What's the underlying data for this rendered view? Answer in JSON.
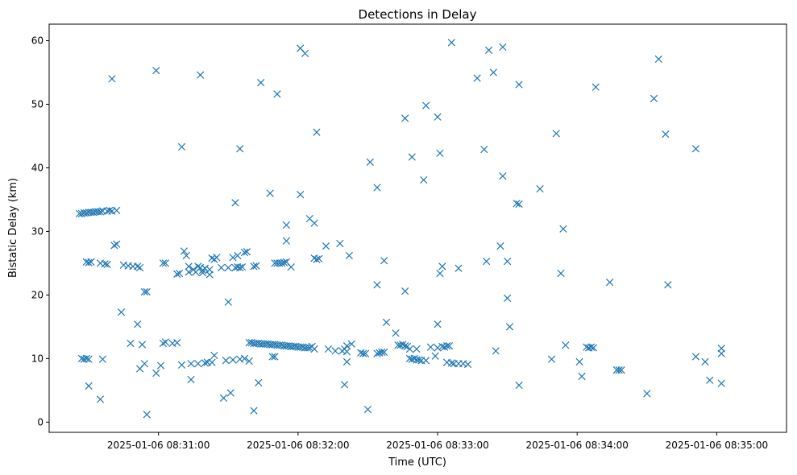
{
  "chart_data": {
    "type": "scatter",
    "title": "Detections in Delay",
    "xlabel": "Time (UTC)",
    "ylabel": "Bistatic Delay (km)",
    "marker": "x",
    "color": "#1f77b4",
    "grid": false,
    "xlim": [
      "2025-01-06T08:30:13",
      "2025-01-06T08:35:30"
    ],
    "ylim": [
      -1.6,
      62.6
    ],
    "x_ticks": [
      {
        "value": "2025-01-06T08:31:00",
        "label": "2025-01-06 08:31:00"
      },
      {
        "value": "2025-01-06T08:32:00",
        "label": "2025-01-06 08:32:00"
      },
      {
        "value": "2025-01-06T08:33:00",
        "label": "2025-01-06 08:33:00"
      },
      {
        "value": "2025-01-06T08:34:00",
        "label": "2025-01-06 08:34:00"
      },
      {
        "value": "2025-01-06T08:35:00",
        "label": "2025-01-06 08:35:00"
      }
    ],
    "y_ticks": [
      0,
      10,
      20,
      30,
      40,
      50,
      60
    ],
    "points": [
      [
        "08:30:26.0",
        32.8
      ],
      [
        "08:30:27.0",
        32.8
      ],
      [
        "08:30:28.0",
        32.9
      ],
      [
        "08:30:29.0",
        32.9
      ],
      [
        "08:30:30.0",
        33.0
      ],
      [
        "08:30:31.0",
        33.0
      ],
      [
        "08:30:32.0",
        33.0
      ],
      [
        "08:30:33.0",
        33.1
      ],
      [
        "08:30:34.0",
        33.1
      ],
      [
        "08:30:35.0",
        33.1
      ],
      [
        "08:30:36.0",
        33.2
      ],
      [
        "08:30:38.0",
        33.2
      ],
      [
        "08:30:39.0",
        33.3
      ],
      [
        "08:30:40.0",
        33.2
      ],
      [
        "08:30:42.0",
        33.3
      ],
      [
        "08:30:27.0",
        10.0
      ],
      [
        "08:30:28.0",
        9.9
      ],
      [
        "08:30:29.0",
        10.0
      ],
      [
        "08:30:30.0",
        9.9
      ],
      [
        "08:30:29.0",
        25.2
      ],
      [
        "08:30:30.0",
        25.1
      ],
      [
        "08:30:31.0",
        25.2
      ],
      [
        "08:30:30.0",
        5.7
      ],
      [
        "08:30:35.0",
        3.6
      ],
      [
        "08:30:35.0",
        25.0
      ],
      [
        "08:30:36.0",
        9.9
      ],
      [
        "08:30:37.0",
        24.9
      ],
      [
        "08:30:38.0",
        24.8
      ],
      [
        "08:30:40.0",
        54.0
      ],
      [
        "08:30:41.0",
        27.8
      ],
      [
        "08:30:42.0",
        28.0
      ],
      [
        "08:30:44.0",
        17.3
      ],
      [
        "08:30:45.0",
        24.7
      ],
      [
        "08:30:47.0",
        24.6
      ],
      [
        "08:30:48.0",
        12.4
      ],
      [
        "08:30:49.0",
        24.5
      ],
      [
        "08:30:51.0",
        24.5
      ],
      [
        "08:30:51.0",
        15.4
      ],
      [
        "08:30:52.0",
        8.4
      ],
      [
        "08:30:52.0",
        24.3
      ],
      [
        "08:30:53.0",
        12.2
      ],
      [
        "08:30:54.0",
        9.2
      ],
      [
        "08:30:54.0",
        20.5
      ],
      [
        "08:30:55.0",
        20.5
      ],
      [
        "08:30:55.0",
        1.2
      ],
      [
        "08:30:59.0",
        55.3
      ],
      [
        "08:30:59.0",
        7.7
      ],
      [
        "08:31:01.0",
        8.9
      ],
      [
        "08:31:02.0",
        12.4
      ],
      [
        "08:31:03.0",
        12.6
      ],
      [
        "08:31:02.0",
        25.0
      ],
      [
        "08:31:03.0",
        25.0
      ],
      [
        "08:31:06.0",
        12.4
      ],
      [
        "08:31:08.0",
        23.3
      ],
      [
        "08:31:09.0",
        23.4
      ],
      [
        "08:31:08.0",
        12.5
      ],
      [
        "08:31:10.0",
        43.3
      ],
      [
        "08:31:10.0",
        9.0
      ],
      [
        "08:31:11.0",
        26.9
      ],
      [
        "08:31:12.0",
        26.2
      ],
      [
        "08:31:13.0",
        24.5
      ],
      [
        "08:31:13.0",
        23.6
      ],
      [
        "08:31:14.0",
        9.2
      ],
      [
        "08:31:14.0",
        6.7
      ],
      [
        "08:31:15.0",
        24.0
      ],
      [
        "08:31:16.0",
        23.6
      ],
      [
        "08:31:17.0",
        9.2
      ],
      [
        "08:31:17.0",
        24.5
      ],
      [
        "08:31:18.0",
        24.3
      ],
      [
        "08:31:18.0",
        54.6
      ],
      [
        "08:31:19.0",
        23.9
      ],
      [
        "08:31:19.0",
        23.5
      ],
      [
        "08:31:20.0",
        9.3
      ],
      [
        "08:31:20.0",
        24.2
      ],
      [
        "08:31:21.0",
        9.4
      ],
      [
        "08:31:22.0",
        24.0
      ],
      [
        "08:31:22.0",
        23.2
      ],
      [
        "08:31:23.0",
        9.4
      ],
      [
        "08:31:23.0",
        25.8
      ],
      [
        "08:31:24.0",
        25.6
      ],
      [
        "08:31:24.0",
        10.5
      ],
      [
        "08:31:25.0",
        25.9
      ],
      [
        "08:31:27.0",
        24.3
      ],
      [
        "08:31:28.0",
        3.8
      ],
      [
        "08:31:29.0",
        9.7
      ],
      [
        "08:31:30.0",
        18.9
      ],
      [
        "08:31:30.0",
        24.3
      ],
      [
        "08:31:31.0",
        4.6
      ],
      [
        "08:31:32.0",
        9.8
      ],
      [
        "08:31:32.0",
        25.9
      ],
      [
        "08:31:33.0",
        34.5
      ],
      [
        "08:31:33.0",
        24.3
      ],
      [
        "08:31:34.0",
        24.4
      ],
      [
        "08:31:34.0",
        26.2
      ],
      [
        "08:31:35.0",
        24.3
      ],
      [
        "08:31:35.0",
        43.0
      ],
      [
        "08:31:35.0",
        9.9
      ],
      [
        "08:31:36.0",
        24.4
      ],
      [
        "08:31:37.0",
        10.0
      ],
      [
        "08:31:37.0",
        26.7
      ],
      [
        "08:31:38.0",
        26.8
      ],
      [
        "08:31:39.0",
        9.6
      ],
      [
        "08:31:39.0",
        12.5
      ],
      [
        "08:31:40.0",
        12.5
      ],
      [
        "08:31:41.0",
        12.4
      ],
      [
        "08:31:42.0",
        12.4
      ],
      [
        "08:31:43.0",
        12.4
      ],
      [
        "08:31:44.0",
        12.3
      ],
      [
        "08:31:45.0",
        12.3
      ],
      [
        "08:31:46.0",
        12.3
      ],
      [
        "08:31:47.0",
        12.3
      ],
      [
        "08:31:48.0",
        12.2
      ],
      [
        "08:31:49.0",
        12.2
      ],
      [
        "08:31:50.0",
        12.2
      ],
      [
        "08:31:51.0",
        12.1
      ],
      [
        "08:31:52.0",
        12.1
      ],
      [
        "08:31:53.0",
        12.1
      ],
      [
        "08:31:54.0",
        12.0
      ],
      [
        "08:31:55.0",
        12.0
      ],
      [
        "08:31:56.0",
        12.0
      ],
      [
        "08:31:57.0",
        11.9
      ],
      [
        "08:31:58.0",
        11.9
      ],
      [
        "08:31:59.0",
        11.9
      ],
      [
        "08:32:00.0",
        11.8
      ],
      [
        "08:32:01.0",
        11.8
      ],
      [
        "08:32:02.0",
        11.8
      ],
      [
        "08:32:03.0",
        11.7
      ],
      [
        "08:32:04.0",
        11.7
      ],
      [
        "08:32:05.0",
        11.7
      ],
      [
        "08:32:06.0",
        11.9
      ],
      [
        "08:32:07.0",
        11.5
      ],
      [
        "08:31:41.0",
        1.8
      ],
      [
        "08:31:41.0",
        24.5
      ],
      [
        "08:31:42.0",
        24.6
      ],
      [
        "08:31:43.0",
        6.2
      ],
      [
        "08:31:44.0",
        53.4
      ],
      [
        "08:31:48.0",
        36.0
      ],
      [
        "08:31:49.0",
        10.3
      ],
      [
        "08:31:50.0",
        25.0
      ],
      [
        "08:31:50.0",
        10.3
      ],
      [
        "08:31:51.0",
        51.6
      ],
      [
        "08:31:51.0",
        25.0
      ],
      [
        "08:31:52.0",
        25.0
      ],
      [
        "08:31:53.0",
        25.0
      ],
      [
        "08:31:54.0",
        25.1
      ],
      [
        "08:31:55.0",
        25.2
      ],
      [
        "08:31:55.0",
        28.5
      ],
      [
        "08:31:55.0",
        31.0
      ],
      [
        "08:31:57.0",
        24.4
      ],
      [
        "08:32:01.0",
        35.8
      ],
      [
        "08:32:01.0",
        58.8
      ],
      [
        "08:32:03.0",
        58.0
      ],
      [
        "08:32:05.0",
        32.0
      ],
      [
        "08:32:07.0",
        25.8
      ],
      [
        "08:32:07.0",
        31.3
      ],
      [
        "08:32:08.0",
        25.6
      ],
      [
        "08:32:08.0",
        45.6
      ],
      [
        "08:32:09.0",
        25.7
      ],
      [
        "08:32:12.0",
        27.7
      ],
      [
        "08:32:13.0",
        11.5
      ],
      [
        "08:32:16.0",
        11.2
      ],
      [
        "08:32:18.0",
        28.1
      ],
      [
        "08:32:19.0",
        11.2
      ],
      [
        "08:32:20.0",
        11.5
      ],
      [
        "08:32:20.0",
        5.9
      ],
      [
        "08:32:21.0",
        11.1
      ],
      [
        "08:32:21.0",
        12.0
      ],
      [
        "08:32:21.0",
        9.5
      ],
      [
        "08:32:22.0",
        26.2
      ],
      [
        "08:32:23.0",
        12.3
      ],
      [
        "08:32:27.0",
        10.9
      ],
      [
        "08:32:28.0",
        10.8
      ],
      [
        "08:32:29.0",
        10.8
      ],
      [
        "08:32:30.0",
        2.0
      ],
      [
        "08:32:31.0",
        40.9
      ],
      [
        "08:32:34.0",
        36.9
      ],
      [
        "08:32:34.0",
        21.6
      ],
      [
        "08:32:34.0",
        10.8
      ],
      [
        "08:32:35.0",
        10.9
      ],
      [
        "08:32:36.0",
        11.0
      ],
      [
        "08:32:37.0",
        11.0
      ],
      [
        "08:32:37.0",
        25.4
      ],
      [
        "08:32:38.0",
        15.7
      ],
      [
        "08:32:42.0",
        14.0
      ],
      [
        "08:32:43.0",
        12.1
      ],
      [
        "08:32:44.0",
        12.1
      ],
      [
        "08:32:45.0",
        12.2
      ],
      [
        "08:32:46.0",
        47.8
      ],
      [
        "08:32:46.0",
        20.6
      ],
      [
        "08:32:46.0",
        12.0
      ],
      [
        "08:32:47.0",
        11.9
      ],
      [
        "08:32:48.0",
        11.5
      ],
      [
        "08:32:48.0",
        10.0
      ],
      [
        "08:32:49.0",
        9.9
      ],
      [
        "08:32:49.0",
        41.7
      ],
      [
        "08:32:50.0",
        10.0
      ],
      [
        "08:32:51.0",
        11.5
      ],
      [
        "08:32:51.0",
        9.8
      ],
      [
        "08:32:52.0",
        9.8
      ],
      [
        "08:32:53.0",
        9.7
      ],
      [
        "08:32:54.0",
        38.1
      ],
      [
        "08:32:55.0",
        49.8
      ],
      [
        "08:32:55.0",
        9.7
      ],
      [
        "08:32:57.0",
        11.8
      ],
      [
        "08:32:59.0",
        10.4
      ],
      [
        "08:33:00.0",
        11.7
      ],
      [
        "08:33:00.0",
        48.0
      ],
      [
        "08:33:00.0",
        15.4
      ],
      [
        "08:33:01.0",
        23.4
      ],
      [
        "08:33:01.0",
        42.3
      ],
      [
        "08:33:02.0",
        24.5
      ],
      [
        "08:33:02.0",
        11.9
      ],
      [
        "08:33:03.0",
        11.8
      ],
      [
        "08:33:04.0",
        12.0
      ],
      [
        "08:33:04.0",
        9.4
      ],
      [
        "08:33:05.0",
        12.0
      ],
      [
        "08:33:06.0",
        59.7
      ],
      [
        "08:33:06.0",
        9.3
      ],
      [
        "08:33:07.0",
        9.2
      ],
      [
        "08:33:09.0",
        24.2
      ],
      [
        "08:33:09.0",
        9.2
      ],
      [
        "08:33:11.0",
        9.2
      ],
      [
        "08:33:13.0",
        9.1
      ],
      [
        "08:33:17.0",
        54.1
      ],
      [
        "08:33:20.0",
        42.9
      ],
      [
        "08:33:21.0",
        25.3
      ],
      [
        "08:33:22.0",
        58.5
      ],
      [
        "08:33:24.0",
        55.0
      ],
      [
        "08:33:25.0",
        11.2
      ],
      [
        "08:33:27.0",
        27.7
      ],
      [
        "08:33:28.0",
        38.7
      ],
      [
        "08:33:28.0",
        59.0
      ],
      [
        "08:33:30.0",
        25.3
      ],
      [
        "08:33:30.0",
        19.5
      ],
      [
        "08:33:31.0",
        15.0
      ],
      [
        "08:33:34.0",
        34.4
      ],
      [
        "08:33:35.0",
        34.3
      ],
      [
        "08:33:35.0",
        53.1
      ],
      [
        "08:33:35.0",
        5.8
      ],
      [
        "08:33:44.0",
        36.7
      ],
      [
        "08:33:49.0",
        9.9
      ],
      [
        "08:33:51.0",
        45.4
      ],
      [
        "08:33:53.0",
        23.4
      ],
      [
        "08:33:54.0",
        30.4
      ],
      [
        "08:33:55.0",
        12.1
      ],
      [
        "08:34:01.0",
        9.5
      ],
      [
        "08:34:02.0",
        7.2
      ],
      [
        "08:34:04.0",
        11.8
      ],
      [
        "08:34:05.0",
        11.7
      ],
      [
        "08:34:06.0",
        11.8
      ],
      [
        "08:34:07.0",
        11.7
      ],
      [
        "08:34:08.0",
        52.7
      ],
      [
        "08:34:14.0",
        22.0
      ],
      [
        "08:34:17.0",
        8.2
      ],
      [
        "08:34:18.0",
        8.2
      ],
      [
        "08:34:19.0",
        8.2
      ],
      [
        "08:34:30.0",
        4.5
      ],
      [
        "08:34:33.0",
        50.9
      ],
      [
        "08:34:35.0",
        57.1
      ],
      [
        "08:34:38.0",
        45.3
      ],
      [
        "08:34:39.0",
        21.6
      ],
      [
        "08:34:51.0",
        43.0
      ],
      [
        "08:34:51.0",
        10.3
      ],
      [
        "08:34:55.0",
        9.5
      ],
      [
        "08:34:57.0",
        6.6
      ],
      [
        "08:35:02.0",
        11.6
      ],
      [
        "08:35:02.0",
        10.8
      ],
      [
        "08:35:02.0",
        6.1
      ]
    ]
  }
}
